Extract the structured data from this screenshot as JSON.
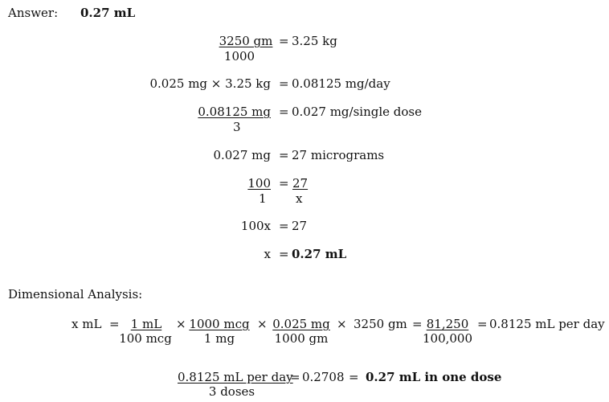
{
  "answer": {
    "label": "Answer:",
    "value": "0.27 mL"
  },
  "steps": {
    "weight": {
      "numerator": "3250 gm",
      "denominator": "1000",
      "eq": "=",
      "result": "3.25 kg"
    },
    "daily": {
      "lhs": "0.025 mg × 3.25 kg",
      "eq": "=",
      "result": "0.08125 mg/day"
    },
    "single": {
      "numerator": "0.08125 mg",
      "denominator": "3",
      "eq": "=",
      "result": "0.027 mg/single dose"
    },
    "convert": {
      "lhs": "0.027 mg",
      "eq": "=",
      "result": "27 micrograms"
    },
    "ratio": {
      "lhs_num": "100",
      "lhs_den": "1",
      "eq": "=",
      "rhs_num": "27",
      "rhs_den": "x"
    },
    "cross": {
      "lhs": "100x",
      "eq": "=",
      "result": "27"
    },
    "solve": {
      "lhs": "x",
      "eq": "=",
      "result": "0.27 mL"
    }
  },
  "dimensional": {
    "heading": "Dimensional Analysis:",
    "lhs": "x mL",
    "eq1": "=",
    "f1_num": "1 mL",
    "f1_den": "100 mcg",
    "times": "×",
    "f2_num": "1000 mcg",
    "f2_den": "1 mg",
    "f3_num": "0.025 mg",
    "f3_den": "1000 gm",
    "f4": "3250 gm",
    "eq2": "=",
    "f5_num": "81,250",
    "f5_den": "100,000",
    "eq3": "=",
    "result": "0.8125 mL per day",
    "dose_num": "0.8125 mL per day",
    "dose_den": "3 doses",
    "dose_eq1": "=",
    "dose_value": "0.2708",
    "dose_eq2": "=",
    "dose_result": "0.27 mL in one dose"
  }
}
